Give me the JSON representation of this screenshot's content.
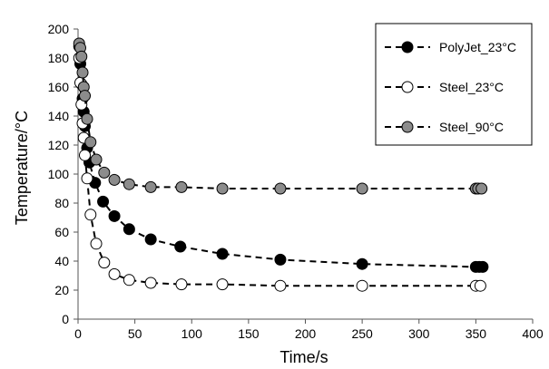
{
  "chart_data": {
    "type": "scatter",
    "xlabel": "Time/s",
    "ylabel": "Temperature/°C",
    "xlim": [
      0,
      400
    ],
    "ylim": [
      0,
      200
    ],
    "xticks": [
      "0",
      "50",
      "100",
      "150",
      "200",
      "250",
      "300",
      "350",
      "400"
    ],
    "yticks": [
      "0",
      "20",
      "40",
      "60",
      "80",
      "100",
      "120",
      "140",
      "160",
      "180",
      "200"
    ],
    "grid": false,
    "legend_position": "top-right",
    "series": [
      {
        "name": "PolyJet_23°C",
        "marker_fill": "#000000",
        "marker_stroke": "#000000",
        "x": [
          1,
          2,
          3,
          4,
          5,
          6,
          8,
          10,
          15,
          22,
          32,
          45,
          64,
          90,
          127,
          178,
          250,
          350,
          353,
          356
        ],
        "y": [
          188,
          176,
          162,
          152,
          143,
          133,
          118,
          108,
          94,
          81,
          71,
          62,
          55,
          50,
          45,
          41,
          38,
          36,
          36,
          36
        ]
      },
      {
        "name": "Steel_23°C",
        "marker_fill": "#ffffff",
        "marker_stroke": "#000000",
        "x": [
          1,
          2,
          3,
          4,
          5,
          6,
          8,
          11,
          16,
          23,
          32,
          45,
          64,
          91,
          127,
          178,
          250,
          350,
          354
        ],
        "y": [
          180,
          163,
          148,
          135,
          125,
          113,
          97,
          72,
          52,
          39,
          31,
          27,
          25,
          24,
          24,
          23,
          23,
          23,
          23
        ]
      },
      {
        "name": "Steel_90°C",
        "marker_fill": "#8c8c8c",
        "marker_stroke": "#000000",
        "x": [
          1,
          2,
          3,
          4,
          5,
          6,
          8,
          11,
          16,
          23,
          32,
          45,
          64,
          91,
          127,
          178,
          250,
          350,
          352,
          355
        ],
        "y": [
          190,
          187,
          181,
          170,
          160,
          154,
          138,
          122,
          110,
          101,
          96,
          93,
          91,
          91,
          90,
          90,
          90,
          90,
          90,
          90
        ]
      }
    ]
  }
}
